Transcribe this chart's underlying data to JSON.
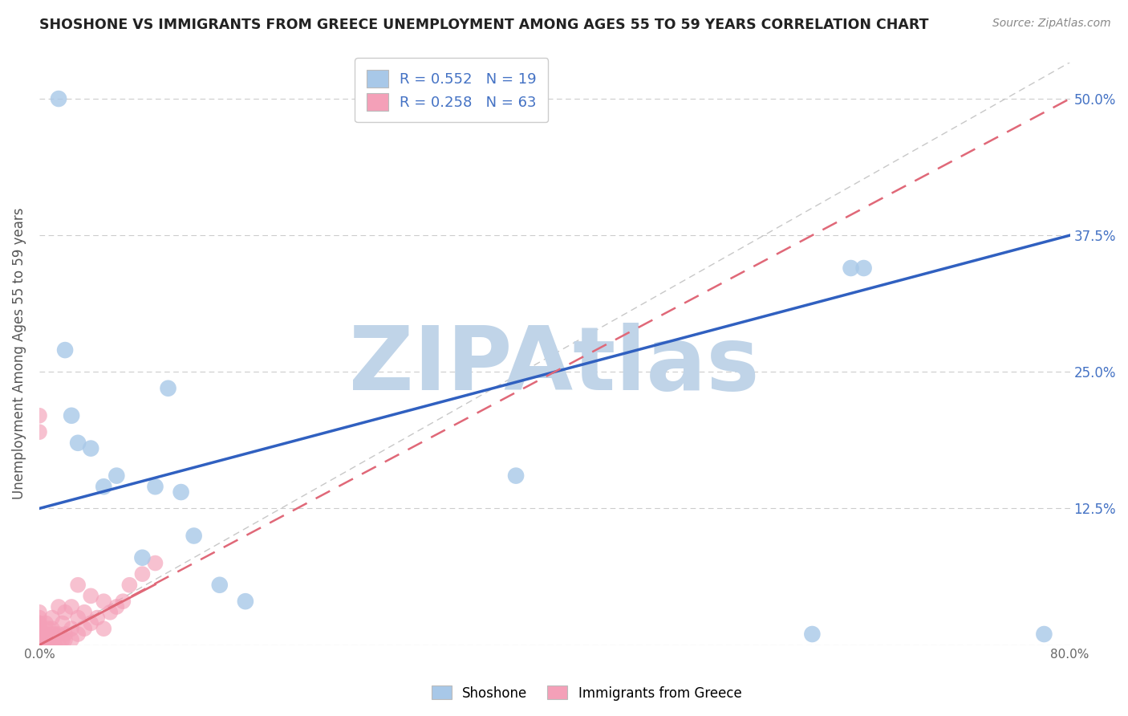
{
  "title": "SHOSHONE VS IMMIGRANTS FROM GREECE UNEMPLOYMENT AMONG AGES 55 TO 59 YEARS CORRELATION CHART",
  "source": "Source: ZipAtlas.com",
  "ylabel": "Unemployment Among Ages 55 to 59 years",
  "xlim": [
    0.0,
    0.8
  ],
  "ylim": [
    0.0,
    0.5333
  ],
  "xticks": [
    0.0,
    0.1,
    0.2,
    0.3,
    0.4,
    0.5,
    0.6,
    0.7,
    0.8
  ],
  "xticklabels": [
    "0.0%",
    "",
    "",
    "",
    "",
    "",
    "",
    "",
    "80.0%"
  ],
  "yticks": [
    0.0,
    0.125,
    0.25,
    0.375,
    0.5
  ],
  "yticklabels_right": [
    "",
    "12.5%",
    "25.0%",
    "37.5%",
    "50.0%"
  ],
  "shoshone_R": 0.552,
  "shoshone_N": 19,
  "greece_R": 0.258,
  "greece_N": 63,
  "shoshone_color": "#a8c8e8",
  "greece_color": "#f4a0b8",
  "shoshone_line_color": "#3060c0",
  "greece_line_color": "#e06878",
  "watermark": "ZIPAtlas",
  "watermark_color": "#c0d4e8",
  "shoshone_x": [
    0.015,
    0.02,
    0.025,
    0.03,
    0.04,
    0.05,
    0.06,
    0.08,
    0.09,
    0.1,
    0.11,
    0.12,
    0.14,
    0.16,
    0.37,
    0.6,
    0.63,
    0.64,
    0.78
  ],
  "shoshone_y": [
    0.5,
    0.27,
    0.21,
    0.185,
    0.18,
    0.145,
    0.155,
    0.08,
    0.145,
    0.235,
    0.14,
    0.1,
    0.055,
    0.04,
    0.155,
    0.01,
    0.345,
    0.345,
    0.01
  ],
  "greece_x": [
    0.0,
    0.0,
    0.0,
    0.0,
    0.0,
    0.0,
    0.0,
    0.0,
    0.0,
    0.0,
    0.0,
    0.0,
    0.0,
    0.0,
    0.0,
    0.0,
    0.0,
    0.0,
    0.0,
    0.0,
    0.0,
    0.0,
    0.005,
    0.005,
    0.005,
    0.005,
    0.005,
    0.007,
    0.007,
    0.01,
    0.01,
    0.01,
    0.01,
    0.01,
    0.012,
    0.012,
    0.015,
    0.015,
    0.015,
    0.018,
    0.018,
    0.02,
    0.02,
    0.02,
    0.025,
    0.025,
    0.025,
    0.03,
    0.03,
    0.03,
    0.035,
    0.035,
    0.04,
    0.04,
    0.045,
    0.05,
    0.05,
    0.055,
    0.06,
    0.065,
    0.07,
    0.08,
    0.09
  ],
  "greece_y": [
    0.0,
    0.0,
    0.0,
    0.0,
    0.0,
    0.0,
    0.0,
    0.0,
    0.0,
    0.0,
    0.005,
    0.005,
    0.01,
    0.01,
    0.015,
    0.015,
    0.02,
    0.02,
    0.025,
    0.03,
    0.195,
    0.21,
    0.0,
    0.0,
    0.005,
    0.01,
    0.02,
    0.0,
    0.015,
    0.0,
    0.0,
    0.01,
    0.015,
    0.025,
    0.0,
    0.01,
    0.0,
    0.01,
    0.035,
    0.005,
    0.02,
    0.005,
    0.01,
    0.03,
    0.005,
    0.015,
    0.035,
    0.01,
    0.025,
    0.055,
    0.015,
    0.03,
    0.02,
    0.045,
    0.025,
    0.015,
    0.04,
    0.03,
    0.035,
    0.04,
    0.055,
    0.065,
    0.075
  ],
  "shoshone_line_x0": 0.0,
  "shoshone_line_y0": 0.125,
  "shoshone_line_x1": 0.8,
  "shoshone_line_y1": 0.375,
  "greece_line_x0": 0.0,
  "greece_line_y0": 0.0,
  "greece_line_x1": 0.8,
  "greece_line_y1": 0.5,
  "diag_color": "#c8c8c8",
  "background_color": "#ffffff",
  "grid_color": "#cccccc"
}
